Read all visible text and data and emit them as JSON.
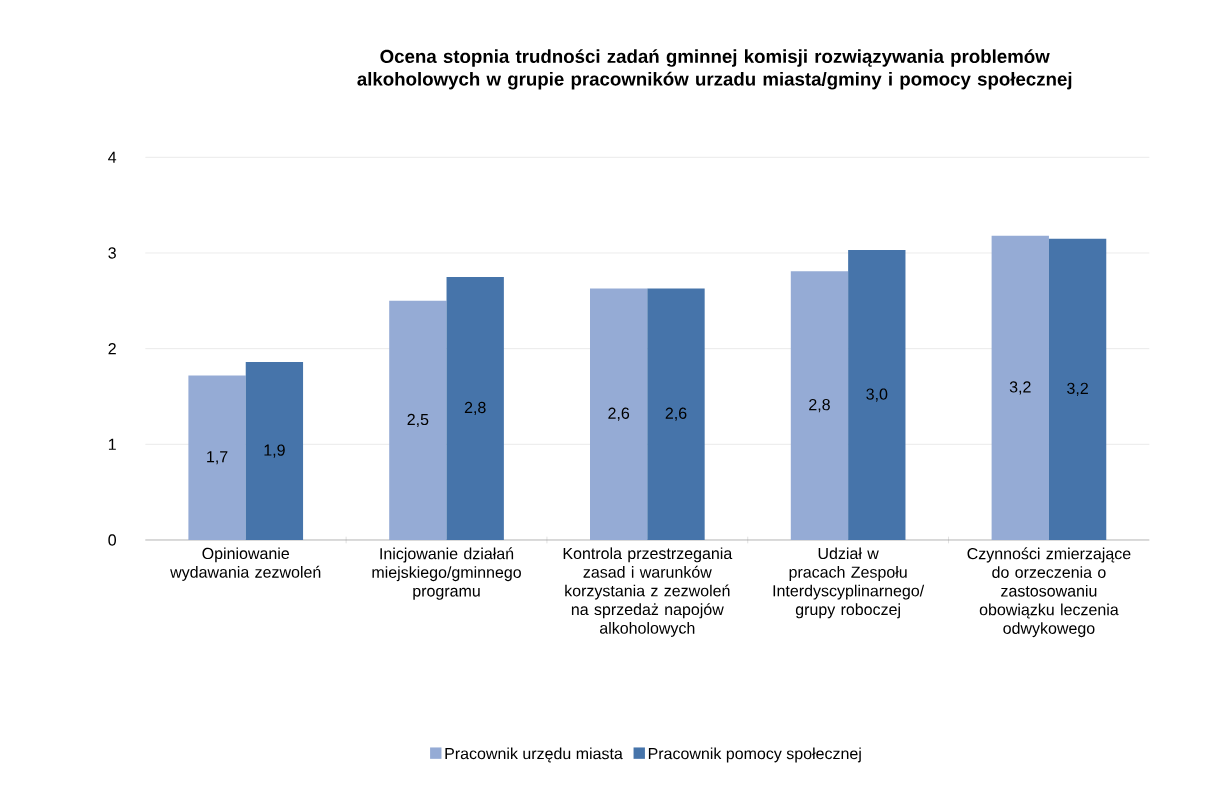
{
  "chart_data": {
    "type": "bar",
    "title": "Ocena stopnia trudności zadań gminnej komisji rozwiązywania problemów alkoholowych w grupie pracowników urzadu miasta/gminy i pomocy społecznej",
    "categories": [
      "Opiniowanie wydawania zezwoleń",
      "Inicjowanie działań miejskiego/gminnego programu",
      "Kontrola przestrzegania zasad i warunków korzystania z zezwoleń na sprzedaż napojów alkoholowych",
      "Udział w pracach Zespołu Interdyscyplinarnego/ grupy roboczej",
      "Czynności zmierzające do orzeczenia o zastosowaniu obowiązku leczenia odwykowego"
    ],
    "series": [
      {
        "name": "Pracownik urzędu miasta",
        "color": "#95abd5",
        "values": [
          1.72,
          2.5,
          2.63,
          2.81,
          3.18
        ],
        "value_labels": [
          "1,7",
          "2,5",
          "2,6",
          "2,8",
          "3,2"
        ]
      },
      {
        "name": "Pracownik pomocy społecznej",
        "color": "#4674aa",
        "values": [
          1.86,
          2.75,
          2.63,
          3.03,
          3.15
        ],
        "value_labels": [
          "1,9",
          "2,8",
          "2,6",
          "3,0",
          "3,2"
        ]
      }
    ],
    "ylim": [
      0,
      4
    ],
    "yticks": [
      0,
      1,
      2,
      3,
      4
    ],
    "grid": "y",
    "legend": "bottom"
  }
}
